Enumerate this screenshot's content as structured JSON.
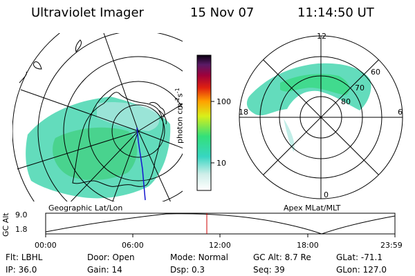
{
  "header": {
    "instrument": "Ultraviolet Imager",
    "date": "15 Nov 07",
    "time": "11:14:50 UT"
  },
  "geo_panel": {
    "caption": "Geographic Lat/Lon"
  },
  "apex_panel": {
    "caption": "Apex MLat/MLT",
    "mlt_labels": [
      "12",
      "18",
      "6",
      "0"
    ],
    "mlat_labels": [
      "60",
      "70",
      "80"
    ]
  },
  "colorbar": {
    "label": "photon cm",
    "exp1": "-2",
    "mid": "s",
    "exp2": "-1",
    "ticks": [
      "100",
      "10"
    ],
    "scale": "log"
  },
  "timeline": {
    "ylabel": "GC Alt",
    "yticks": [
      "9.0",
      "1.8"
    ],
    "xticks": [
      "00:00",
      "06:00",
      "12:00",
      "18:00",
      "23:59"
    ],
    "current_marker": "11:14:50",
    "marker_color": "#cc0000"
  },
  "footer": {
    "row1": [
      {
        "label": "Flt:",
        "value": "LBHL"
      },
      {
        "label": "Door:",
        "value": "Open"
      },
      {
        "label": "Mode:",
        "value": "Normal"
      },
      {
        "label": "GC Alt:",
        "value": "8.7 Re"
      },
      {
        "label": "GLat:",
        "value": "-71.1"
      }
    ],
    "row2": [
      {
        "label": "IP:",
        "value": "36.0"
      },
      {
        "label": "Gain:",
        "value": "14"
      },
      {
        "label": "Dsp:",
        "value": "0.3"
      },
      {
        "label": "Seq:",
        "value": "39"
      },
      {
        "label": "GLon:",
        "value": "127.0"
      }
    ]
  }
}
